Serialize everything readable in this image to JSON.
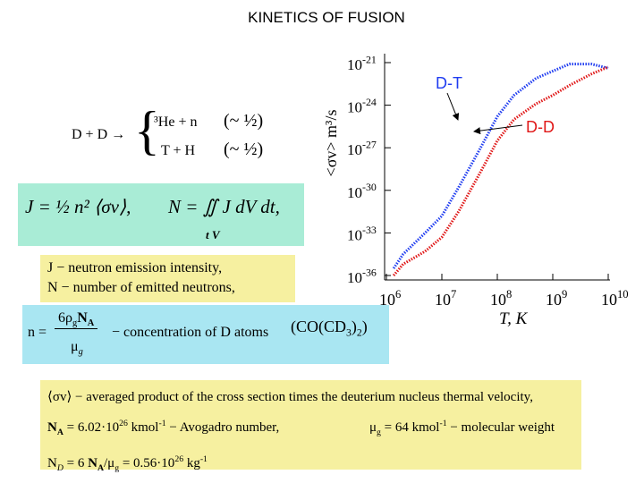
{
  "title": "KINETICS OF FUSION",
  "reaction": {
    "left": "D + D →",
    "branches": [
      {
        "products": "³He + n",
        "fraction": "(~ ½)"
      },
      {
        "products": "T + H",
        "fraction": "(~ ½)"
      }
    ]
  },
  "formula_box": {
    "intensity": "J = ½ n² ⟨σv⟩,",
    "count": "N = ∬ J dV dt,",
    "limits": "t V"
  },
  "definitions": [
    "J − neutron emission intensity,",
    "N − number of emitted neutrons,"
  ],
  "concentration": {
    "lhs": "n =",
    "num": [
      "6ρ",
      "g",
      "N",
      "A"
    ],
    "den": [
      "μ",
      "g"
    ],
    "text": "− concentration of D atoms",
    "formula": [
      "(CO(CD",
      "3",
      ")",
      "2",
      ")"
    ]
  },
  "notes": {
    "line1": "⟨σv⟩ − averaged product of the cross section times the deuterium nucleus thermal velocity,",
    "line2": [
      "N",
      "A",
      " = 6.02·10",
      "26",
      " kmol",
      "-1",
      " − Avogadro number,"
    ],
    "line2b": [
      "μ",
      "g",
      " = 64 kmol",
      "-1",
      " − molecular weight"
    ],
    "line3": [
      "N",
      "D",
      " = 6 ",
      "N",
      "A",
      "/μ",
      "g",
      " = 0.56·10",
      "26",
      " kg",
      "-1"
    ]
  },
  "chart_data": {
    "type": "line",
    "log_x": true,
    "log_y": true,
    "x_label": "T, K",
    "y_label": "<σv> m³/s",
    "x": [
      1350000,
      2000000,
      5000000,
      10000000,
      20000000,
      50000000,
      100000000,
      200000000,
      500000000,
      1000000000,
      2000000000,
      5000000000,
      10000000000
    ],
    "series": [
      {
        "name": "D-T",
        "color": "#1f3cf0",
        "values": [
          3.16e-36,
          3.16e-35,
          1e-33,
          1.58e-32,
          1.58e-30,
          1e-27,
          1.58e-25,
          5.01e-24,
          7.94e-23,
          2.51e-22,
          7.94e-22,
          7.94e-22,
          3.98e-22
        ]
      },
      {
        "name": "D-D",
        "color": "#e01818",
        "values": [
          1e-36,
          6.31e-36,
          5.01e-35,
          5.01e-34,
          3.16e-32,
          2e-29,
          3.16e-27,
          1e-25,
          1.26e-24,
          5.01e-24,
          2.51e-23,
          1.58e-22,
          5.01e-22
        ]
      }
    ],
    "xlim": [
      1000000,
      10000000000
    ],
    "xticks": [
      {
        "value": 1000000,
        "label": "106"
      },
      {
        "value": 10000000,
        "label": "107"
      },
      {
        "value": 100000000,
        "label": "108"
      },
      {
        "value": 1000000000,
        "label": "109"
      },
      {
        "value": 10000000000,
        "label": "1010"
      }
    ],
    "ylim": [
      1e-36,
      1e-21
    ],
    "yticks": [
      {
        "value": 1e-36,
        "label": "10-36"
      },
      {
        "value": 1e-33,
        "label": "10-33"
      },
      {
        "value": 1e-30,
        "label": "10-30"
      },
      {
        "value": 1e-27,
        "label": "10-27"
      },
      {
        "value": 1e-24,
        "label": "10-24"
      },
      {
        "value": 1e-21,
        "label": "10-21"
      }
    ]
  }
}
